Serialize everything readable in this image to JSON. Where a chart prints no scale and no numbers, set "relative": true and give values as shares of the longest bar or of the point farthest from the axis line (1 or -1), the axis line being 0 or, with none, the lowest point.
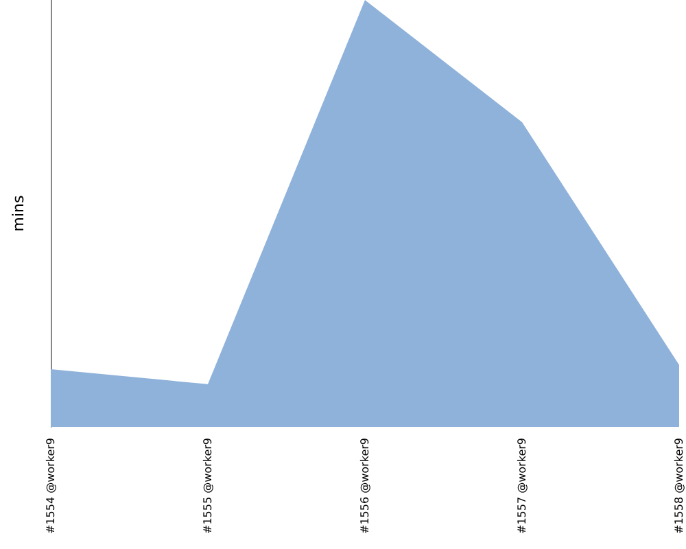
{
  "chart_data": {
    "type": "area",
    "ylabel": "mins",
    "relative": true,
    "categories": [
      "#1554 @worker9",
      "#1555 @worker9",
      "#1556 @worker9",
      "#1557 @worker9",
      "#1558 @worker9"
    ],
    "series": [
      {
        "color": "#8fb2db",
        "values": [
          0.135,
          0.1,
          1,
          0.714,
          0.145
        ]
      }
    ]
  }
}
